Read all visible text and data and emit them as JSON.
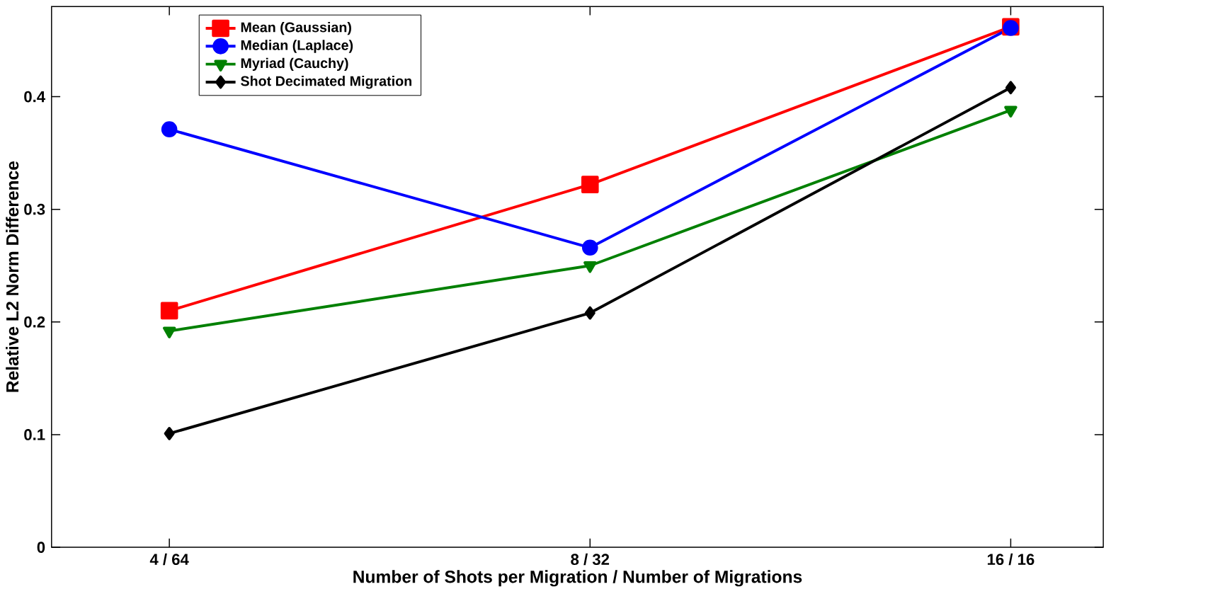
{
  "chart_data": {
    "type": "line",
    "xlabel": "Number of Shots per Migration / Number of Migrations",
    "ylabel": "Relative L2 Norm Difference",
    "categories": [
      "4 / 64",
      "8 / 32",
      "16 / 16"
    ],
    "ylim": [
      0,
      0.48
    ],
    "yticks": [
      0,
      0.1,
      0.2,
      0.3,
      0.4
    ],
    "legend": "top left",
    "line_style": "solid",
    "series": [
      {
        "name": "Mean (Gaussian)",
        "color": "#ff0000",
        "marker": "square",
        "values": [
          0.21,
          0.322,
          0.462
        ]
      },
      {
        "name": "Median (Laplace)",
        "color": "#0000ff",
        "marker": "circle",
        "values": [
          0.371,
          0.266,
          0.461
        ]
      },
      {
        "name": "Myriad (Cauchy)",
        "color": "#008000",
        "marker": "triangle",
        "values": [
          0.192,
          0.25,
          0.388
        ]
      },
      {
        "name": "Shot Decimated Migration",
        "color": "#000000",
        "marker": "diamond",
        "values": [
          0.101,
          0.208,
          0.408
        ]
      }
    ]
  }
}
